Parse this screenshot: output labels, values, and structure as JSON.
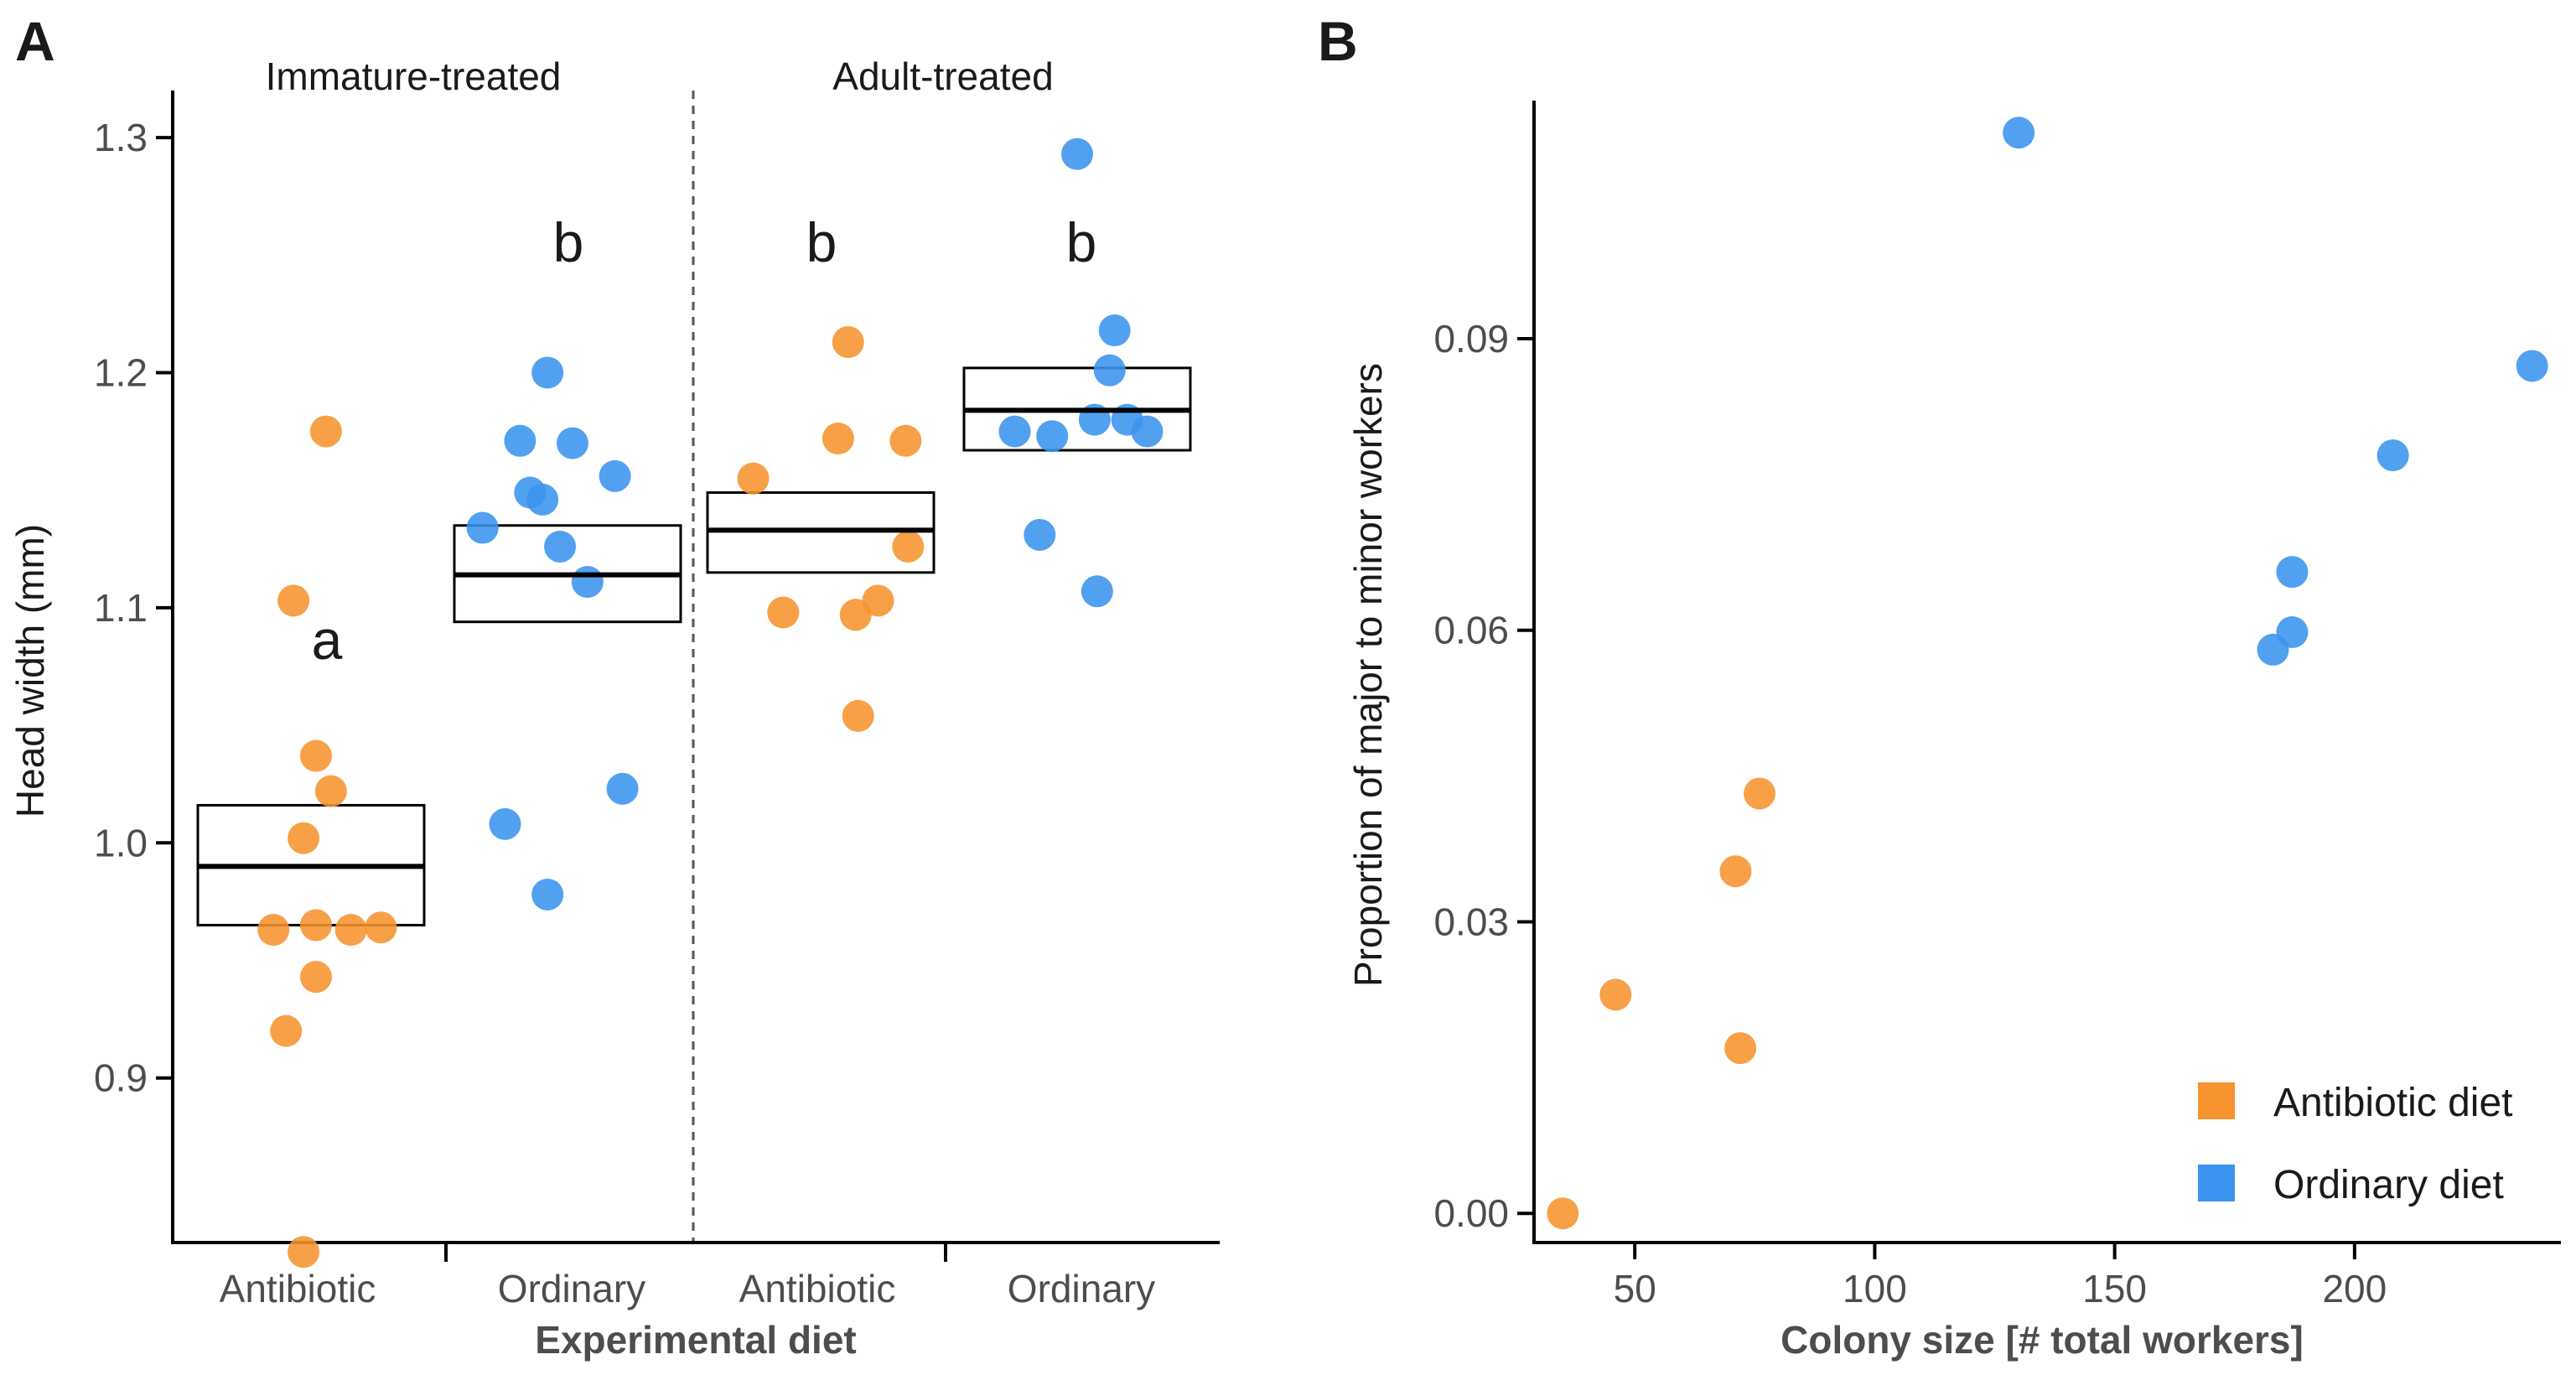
{
  "panels": {
    "A": {
      "label": "A"
    },
    "B": {
      "label": "B"
    }
  },
  "colors": {
    "antibiotic": "#F7932E",
    "ordinary": "#3A93EE",
    "axis": "#000000",
    "box": "#000000"
  },
  "chart_data": [
    {
      "type": "scatter",
      "panel": "A",
      "title": "",
      "xlabel": "Experimental diet",
      "ylabel": "Head width (mm)",
      "ylim": [
        0.83,
        1.32
      ],
      "yticks": [
        0.9,
        1.0,
        1.1,
        1.2,
        1.3
      ],
      "ytick_labels": [
        "0.9",
        "1.0",
        "1.1",
        "1.2",
        "1.3"
      ],
      "facets": [
        "Immature-treated",
        "Adult-treated"
      ],
      "groups": [
        {
          "facet": "Immature-treated",
          "category": "Antibiotic",
          "diet": "antibiotic",
          "letter": "a",
          "mean": 0.99,
          "box_low": 0.965,
          "box_high": 1.016,
          "points": [
            {
              "jitter": 0.56,
              "y": 1.175
            },
            {
              "jitter": 0.43,
              "y": 1.103
            },
            {
              "jitter": 0.52,
              "y": 1.037
            },
            {
              "jitter": 0.58,
              "y": 1.022
            },
            {
              "jitter": 0.47,
              "y": 1.002
            },
            {
              "jitter": 0.35,
              "y": 0.963
            },
            {
              "jitter": 0.52,
              "y": 0.965
            },
            {
              "jitter": 0.66,
              "y": 0.963
            },
            {
              "jitter": 0.78,
              "y": 0.964
            },
            {
              "jitter": 0.52,
              "y": 0.943
            },
            {
              "jitter": 0.4,
              "y": 0.92
            },
            {
              "jitter": 0.47,
              "y": 0.826
            }
          ]
        },
        {
          "facet": "Immature-treated",
          "category": "Ordinary",
          "diet": "ordinary",
          "letter": "b",
          "mean": 1.114,
          "box_low": 1.094,
          "box_high": 1.135,
          "points": [
            {
              "jitter": 0.42,
              "y": 1.2
            },
            {
              "jitter": 0.31,
              "y": 1.171
            },
            {
              "jitter": 0.52,
              "y": 1.17
            },
            {
              "jitter": 0.69,
              "y": 1.156
            },
            {
              "jitter": 0.35,
              "y": 1.149
            },
            {
              "jitter": 0.4,
              "y": 1.146
            },
            {
              "jitter": 0.16,
              "y": 1.134
            },
            {
              "jitter": 0.47,
              "y": 1.126
            },
            {
              "jitter": 0.58,
              "y": 1.111
            },
            {
              "jitter": 0.72,
              "y": 1.023
            },
            {
              "jitter": 0.25,
              "y": 1.008
            },
            {
              "jitter": 0.42,
              "y": 0.978
            }
          ]
        },
        {
          "facet": "Adult-treated",
          "category": "Antibiotic",
          "diet": "antibiotic",
          "letter": "b",
          "mean": 1.133,
          "box_low": 1.115,
          "box_high": 1.149,
          "points": [
            {
              "jitter": 0.61,
              "y": 1.213
            },
            {
              "jitter": 0.57,
              "y": 1.172
            },
            {
              "jitter": 0.84,
              "y": 1.171
            },
            {
              "jitter": 0.23,
              "y": 1.155
            },
            {
              "jitter": 0.85,
              "y": 1.126
            },
            {
              "jitter": 0.73,
              "y": 1.103
            },
            {
              "jitter": 0.35,
              "y": 1.098
            },
            {
              "jitter": 0.64,
              "y": 1.097
            },
            {
              "jitter": 0.65,
              "y": 1.054
            }
          ]
        },
        {
          "facet": "Adult-treated",
          "category": "Ordinary",
          "diet": "ordinary",
          "letter": "b",
          "mean": 1.184,
          "box_low": 1.167,
          "box_high": 1.202,
          "points": [
            {
              "jitter": 0.5,
              "y": 1.293
            },
            {
              "jitter": 0.65,
              "y": 1.218
            },
            {
              "jitter": 0.63,
              "y": 1.201
            },
            {
              "jitter": 0.57,
              "y": 1.18
            },
            {
              "jitter": 0.7,
              "y": 1.18
            },
            {
              "jitter": 0.25,
              "y": 1.175
            },
            {
              "jitter": 0.4,
              "y": 1.173
            },
            {
              "jitter": 0.78,
              "y": 1.175
            },
            {
              "jitter": 0.35,
              "y": 1.131
            },
            {
              "jitter": 0.58,
              "y": 1.107
            }
          ]
        }
      ]
    },
    {
      "type": "scatter",
      "panel": "B",
      "title": "",
      "xlabel": "Colony size [# total workers]",
      "ylabel": "Proportion of major to minor workers",
      "xlim": [
        29,
        243
      ],
      "ylim": [
        -0.003,
        0.1145
      ],
      "xticks": [
        50,
        100,
        150,
        200
      ],
      "xtick_labels": [
        "50",
        "100",
        "150",
        "200"
      ],
      "yticks": [
        0.0,
        0.03,
        0.06,
        0.09
      ],
      "ytick_labels": [
        "0.00",
        "0.03",
        "0.06",
        "0.09"
      ],
      "legend": {
        "position": "bottom-right",
        "entries": [
          {
            "label": "Antibiotic diet",
            "diet": "antibiotic"
          },
          {
            "label": "Ordinary diet",
            "diet": "ordinary"
          }
        ]
      },
      "series": [
        {
          "name": "Antibiotic diet",
          "diet": "antibiotic",
          "points": [
            {
              "x": 35,
              "y": 0.0
            },
            {
              "x": 46,
              "y": 0.0225
            },
            {
              "x": 71,
              "y": 0.0352
            },
            {
              "x": 72,
              "y": 0.017
            },
            {
              "x": 76,
              "y": 0.0432
            }
          ]
        },
        {
          "name": "Ordinary diet",
          "diet": "ordinary",
          "points": [
            {
              "x": 130,
              "y": 0.1112
            },
            {
              "x": 183,
              "y": 0.058
            },
            {
              "x": 187,
              "y": 0.0598
            },
            {
              "x": 187,
              "y": 0.066
            },
            {
              "x": 208,
              "y": 0.078
            },
            {
              "x": 237,
              "y": 0.0872
            }
          ]
        }
      ]
    }
  ]
}
